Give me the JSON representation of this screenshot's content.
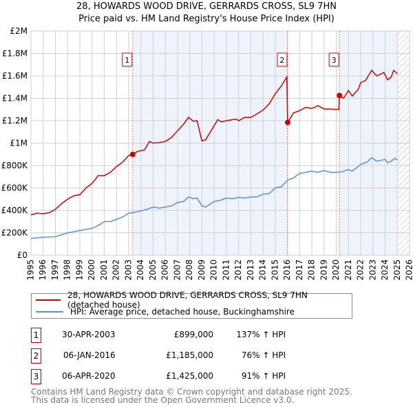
{
  "title_line1": "28, HOWARDS WOOD DRIVE, GERRARDS CROSS, SL9 7HN",
  "title_line2": "Price paid vs. HM Land Registry's House Price Index (HPI)",
  "chart_data": {
    "type": "line",
    "xlim": [
      1995,
      2026
    ],
    "ylim": [
      0,
      2000000
    ],
    "x_ticks": [
      "1995",
      "1996",
      "1997",
      "1998",
      "1999",
      "2000",
      "2001",
      "2002",
      "2003",
      "2004",
      "2005",
      "2006",
      "2007",
      "2008",
      "2009",
      "2010",
      "2011",
      "2012",
      "2013",
      "2014",
      "2015",
      "2016",
      "2017",
      "2018",
      "2019",
      "2020",
      "2021",
      "2022",
      "2023",
      "2024",
      "2025",
      "2026"
    ],
    "y_ticks": [
      {
        "v": 0,
        "l": "£0"
      },
      {
        "v": 200000,
        "l": "£200K"
      },
      {
        "v": 400000,
        "l": "£400K"
      },
      {
        "v": 600000,
        "l": "£600K"
      },
      {
        "v": 800000,
        "l": "£800K"
      },
      {
        "v": 1000000,
        "l": "£1M"
      },
      {
        "v": 1200000,
        "l": "£1.2M"
      },
      {
        "v": 1400000,
        "l": "£1.4M"
      },
      {
        "v": 1600000,
        "l": "£1.6M"
      },
      {
        "v": 1800000,
        "l": "£1.8M"
      },
      {
        "v": 2000000,
        "l": "£2M"
      }
    ],
    "grid": true,
    "shaded_ranges": [
      [
        2003.33,
        2016.02
      ],
      [
        2020.26,
        2025.0
      ]
    ],
    "future_hatch_from": 2025.0,
    "series": [
      {
        "name": "28, HOWARDS WOOD DRIVE, GERRARDS CROSS, SL9 7HN (detached house)",
        "color": "#cc0000",
        "points": [
          [
            1995,
            360
          ],
          [
            1995.5,
            375
          ],
          [
            1996,
            370
          ],
          [
            1996.5,
            380
          ],
          [
            1997,
            410
          ],
          [
            1997.5,
            460
          ],
          [
            1998,
            500
          ],
          [
            1998.5,
            530
          ],
          [
            1999,
            540
          ],
          [
            1999.5,
            600
          ],
          [
            2000,
            640
          ],
          [
            2000.5,
            710
          ],
          [
            2001,
            710
          ],
          [
            2001.5,
            740
          ],
          [
            2002,
            790
          ],
          [
            2002.5,
            830
          ],
          [
            2003,
            890
          ],
          [
            2003.33,
            899
          ],
          [
            2003.7,
            925
          ],
          [
            2004.3,
            940
          ],
          [
            2004.7,
            1015
          ],
          [
            2005,
            1000
          ],
          [
            2005.5,
            1005
          ],
          [
            2006,
            1015
          ],
          [
            2006.5,
            1050
          ],
          [
            2007,
            1110
          ],
          [
            2007.5,
            1170
          ],
          [
            2007.9,
            1230
          ],
          [
            2008.3,
            1195
          ],
          [
            2008.6,
            1200
          ],
          [
            2009,
            1020
          ],
          [
            2009.3,
            1030
          ],
          [
            2009.8,
            1120
          ],
          [
            2010.3,
            1210
          ],
          [
            2010.6,
            1190
          ],
          [
            2011,
            1200
          ],
          [
            2011.8,
            1215
          ],
          [
            2012,
            1200
          ],
          [
            2012.5,
            1230
          ],
          [
            2013,
            1230
          ],
          [
            2013.5,
            1260
          ],
          [
            2014,
            1295
          ],
          [
            2014.5,
            1350
          ],
          [
            2015,
            1440
          ],
          [
            2015.5,
            1510
          ],
          [
            2015.95,
            1590
          ],
          [
            2016.02,
            1185
          ],
          [
            2016.5,
            1270
          ],
          [
            2017,
            1290
          ],
          [
            2017.5,
            1320
          ],
          [
            2018,
            1310
          ],
          [
            2018.5,
            1335
          ],
          [
            2019,
            1305
          ],
          [
            2019.5,
            1305
          ],
          [
            2020.2,
            1300
          ],
          [
            2020.26,
            1425
          ],
          [
            2020.6,
            1400
          ],
          [
            2021,
            1470
          ],
          [
            2021.3,
            1420
          ],
          [
            2021.8,
            1480
          ],
          [
            2022,
            1540
          ],
          [
            2022.4,
            1560
          ],
          [
            2022.9,
            1650
          ],
          [
            2023.3,
            1600
          ],
          [
            2023.9,
            1630
          ],
          [
            2024.2,
            1565
          ],
          [
            2024.5,
            1590
          ],
          [
            2024.7,
            1650
          ],
          [
            2025,
            1620
          ]
        ]
      },
      {
        "name": "HPI: Average price, detached house, Buckinghamshire",
        "color": "#5b8fd4",
        "points": [
          [
            1995,
            150
          ],
          [
            1996,
            160
          ],
          [
            1997,
            165
          ],
          [
            1998,
            200
          ],
          [
            1999,
            220
          ],
          [
            2000,
            240
          ],
          [
            2000.5,
            265
          ],
          [
            2001,
            300
          ],
          [
            2001.5,
            300
          ],
          [
            2002,
            320
          ],
          [
            2002.5,
            340
          ],
          [
            2003,
            375
          ],
          [
            2003.33,
            380
          ],
          [
            2004,
            395
          ],
          [
            2004.5,
            410
          ],
          [
            2005,
            430
          ],
          [
            2005.5,
            420
          ],
          [
            2006,
            430
          ],
          [
            2006.5,
            440
          ],
          [
            2007,
            470
          ],
          [
            2007.5,
            480
          ],
          [
            2007.9,
            520
          ],
          [
            2008.3,
            505
          ],
          [
            2008.6,
            510
          ],
          [
            2009,
            440
          ],
          [
            2009.3,
            430
          ],
          [
            2010,
            480
          ],
          [
            2010.5,
            490
          ],
          [
            2011,
            510
          ],
          [
            2011.5,
            505
          ],
          [
            2012,
            515
          ],
          [
            2012.5,
            510
          ],
          [
            2013,
            520
          ],
          [
            2013.5,
            520
          ],
          [
            2014,
            545
          ],
          [
            2014.5,
            550
          ],
          [
            2015,
            600
          ],
          [
            2015.5,
            610
          ],
          [
            2016,
            670
          ],
          [
            2016.5,
            690
          ],
          [
            2017,
            730
          ],
          [
            2017.5,
            740
          ],
          [
            2018,
            750
          ],
          [
            2018.5,
            740
          ],
          [
            2019,
            755
          ],
          [
            2019.5,
            740
          ],
          [
            2020,
            740
          ],
          [
            2020.5,
            745
          ],
          [
            2021,
            765
          ],
          [
            2021.3,
            750
          ],
          [
            2022,
            810
          ],
          [
            2022.5,
            830
          ],
          [
            2022.9,
            870
          ],
          [
            2023.3,
            840
          ],
          [
            2023.6,
            845
          ],
          [
            2024,
            855
          ],
          [
            2024.2,
            825
          ],
          [
            2024.5,
            840
          ],
          [
            2024.8,
            865
          ],
          [
            2025,
            850
          ]
        ]
      }
    ],
    "sales": [
      {
        "label": "1",
        "x": 2003.33,
        "value": 899000
      },
      {
        "label": "2",
        "x": 2016.02,
        "value": 1185000
      },
      {
        "label": "3",
        "x": 2020.26,
        "value": 1425000
      }
    ],
    "legend_placement": "below"
  },
  "legend": {
    "red": "28, HOWARDS WOOD DRIVE, GERRARDS CROSS, SL9 7HN (detached house)",
    "blue": "HPI: Average price, detached house, Buckinghamshire"
  },
  "transactions": [
    {
      "n": "1",
      "date": "30-APR-2003",
      "price": "£899,000",
      "hpi": "137% ↑ HPI"
    },
    {
      "n": "2",
      "date": "06-JAN-2016",
      "price": "£1,185,000",
      "hpi": "76% ↑ HPI"
    },
    {
      "n": "3",
      "date": "06-APR-2020",
      "price": "£1,425,000",
      "hpi": "91% ↑ HPI"
    }
  ],
  "footer_line1": "Contains HM Land Registry data © Crown copyright and database right 2025.",
  "footer_line2": "This data is licensed under the Open Government Licence v3.0."
}
